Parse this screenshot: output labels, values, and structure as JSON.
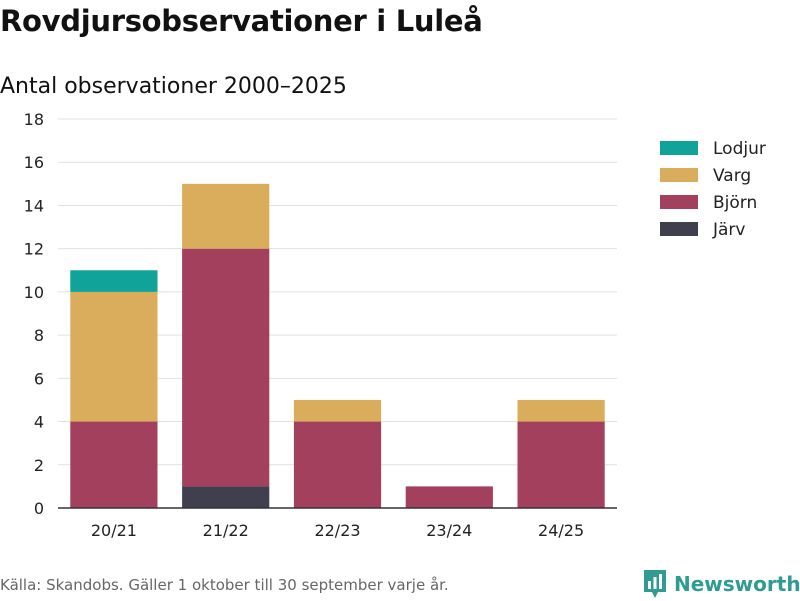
{
  "chart_data": {
    "type": "bar",
    "stacked": true,
    "title": "Rovdjursobservationer i Luleå",
    "subtitle": "Antal observationer 2000–2025",
    "categories": [
      "20/21",
      "21/22",
      "22/23",
      "23/24",
      "24/25"
    ],
    "series": [
      {
        "name": "Järv",
        "color": "#3f3f4e",
        "values": [
          0,
          1,
          0,
          0,
          0
        ]
      },
      {
        "name": "Björn",
        "color": "#a3405d",
        "values": [
          4,
          11,
          4,
          1,
          4
        ]
      },
      {
        "name": "Varg",
        "color": "#d9ad5b",
        "values": [
          6,
          3,
          1,
          0,
          1
        ]
      },
      {
        "name": "Lodjur",
        "color": "#0fa399",
        "values": [
          1,
          0,
          0,
          0,
          0
        ]
      }
    ],
    "legend_order": [
      "Lodjur",
      "Varg",
      "Björn",
      "Järv"
    ],
    "legend_position": "top-right",
    "ylim": [
      0,
      18
    ],
    "yticks": [
      0,
      2,
      4,
      6,
      8,
      10,
      12,
      14,
      16,
      18
    ],
    "grid": true,
    "xlabel": "",
    "ylabel": ""
  },
  "footer": {
    "source": "Källa: Skandobs. Gäller 1 oktober till 30 september varje år.",
    "brand": "Newsworthy",
    "brand_color": "#2e9c91"
  }
}
